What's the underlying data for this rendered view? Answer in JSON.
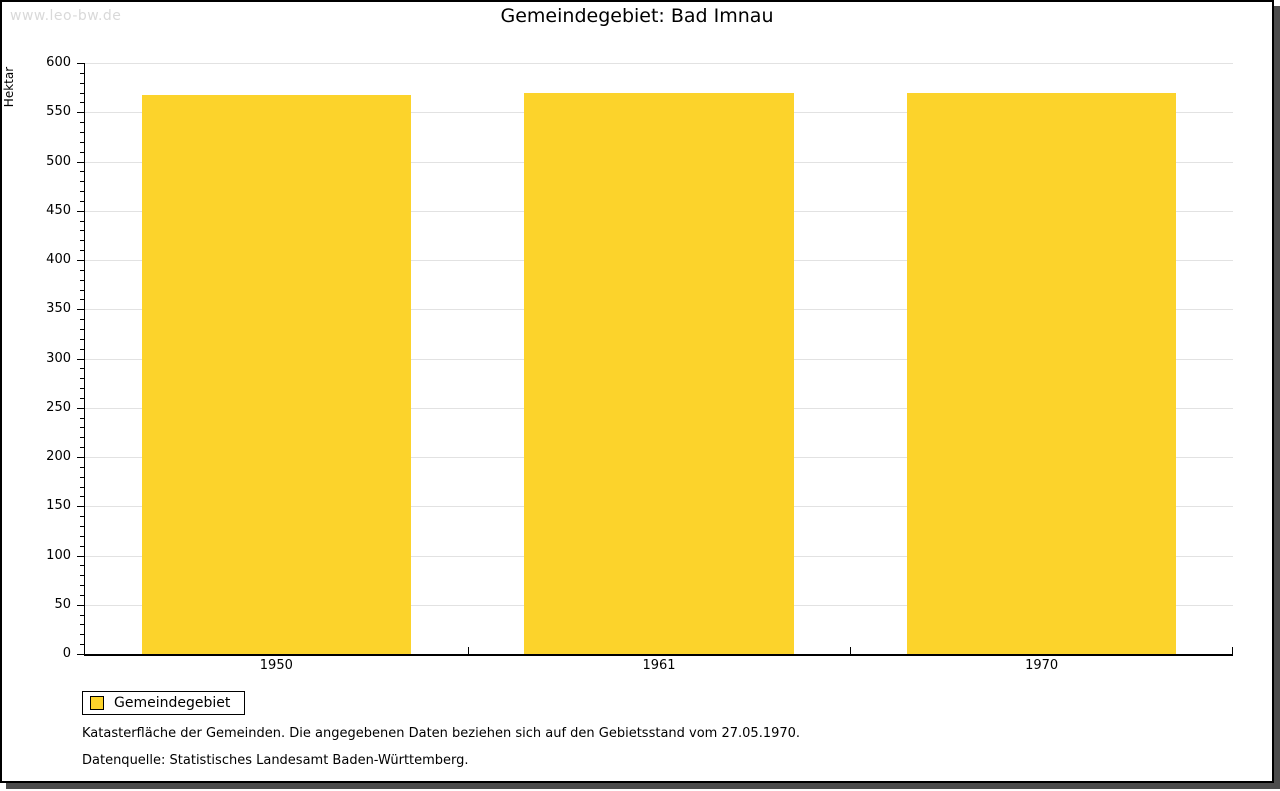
{
  "watermark": "www.leo-bw.de",
  "chart_data": {
    "type": "bar",
    "title": "Gemeindegebiet: Bad Imnau",
    "categories": [
      "1950",
      "1961",
      "1970"
    ],
    "series": [
      {
        "name": "Gemeindegebiet",
        "color": "#FCD32B",
        "values": [
          568,
          570,
          570
        ]
      }
    ],
    "xlabel": "",
    "ylabel": "Hektar",
    "ylim": [
      0,
      600
    ],
    "y_major_step": 50,
    "y_minor_step": 10,
    "grid": true,
    "legend_position": "bottom-left",
    "legend_entries": [
      "Gemeindegebiet"
    ]
  },
  "legend": {
    "label": "Gemeindegebiet"
  },
  "notes": {
    "line1": "Katasterfläche der Gemeinden. Die angegebenen Daten beziehen sich auf den Gebietsstand vom 27.05.1970.",
    "line2": "Datenquelle: Statistisches Landesamt Baden-Württemberg."
  },
  "colors": {
    "bar": "#FCD32B",
    "gridline": "#e2e2e2",
    "axis": "#000000",
    "shadow": "#4d4d4d",
    "watermark": "#d9d9d9"
  }
}
